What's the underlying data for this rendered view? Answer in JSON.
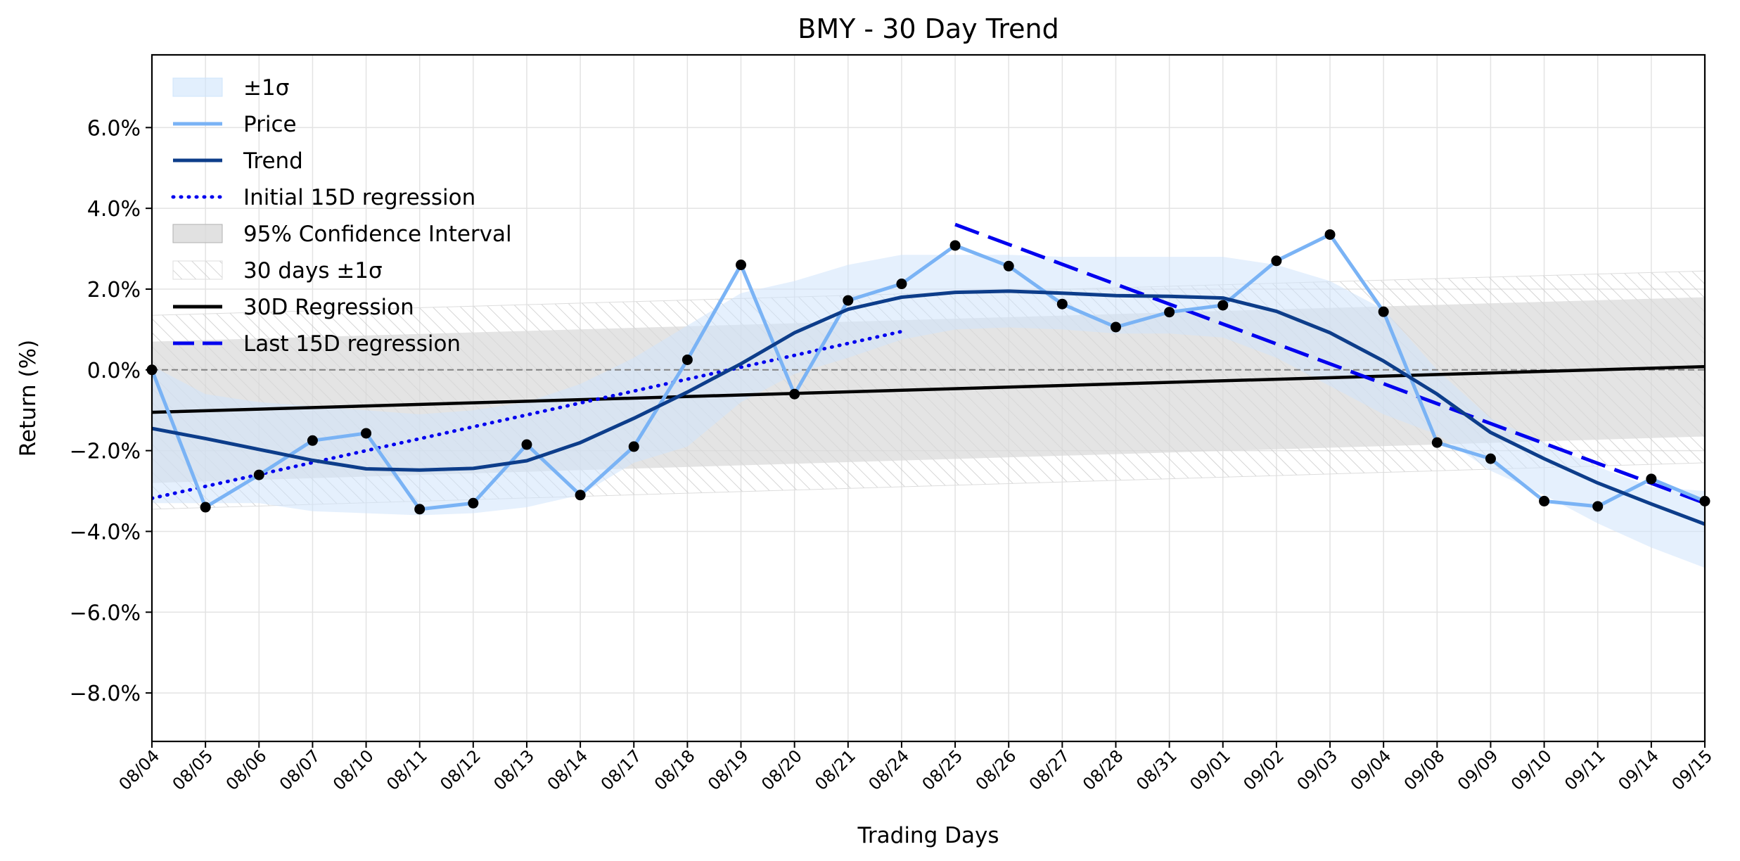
{
  "chart_data": {
    "type": "line",
    "title": "BMY - 30 Day Trend",
    "xlabel": "Trading Days",
    "ylabel": "Return (%)",
    "ylim": [
      -9.2,
      7.8
    ],
    "yticks": [
      {
        "value": 6,
        "label": "6.0%"
      },
      {
        "value": 4,
        "label": "4.0%"
      },
      {
        "value": 2,
        "label": "2.0%"
      },
      {
        "value": 0,
        "label": "0.0%"
      },
      {
        "value": -2,
        "label": "−2.0%"
      },
      {
        "value": -4,
        "label": "−4.0%"
      },
      {
        "value": -6,
        "label": "−6.0%"
      },
      {
        "value": -8,
        "label": "−8.0%"
      }
    ],
    "grid": true,
    "legend_position": "top-left",
    "categories": [
      "08/04",
      "08/05",
      "08/06",
      "08/07",
      "08/10",
      "08/11",
      "08/12",
      "08/13",
      "08/14",
      "08/17",
      "08/18",
      "08/19",
      "08/20",
      "08/21",
      "08/24",
      "08/25",
      "08/26",
      "08/27",
      "08/28",
      "08/31",
      "09/01",
      "09/02",
      "09/03",
      "09/04",
      "09/08",
      "09/09",
      "09/10",
      "09/11",
      "09/14",
      "09/15"
    ],
    "series": [
      {
        "name": "Price",
        "color": "#7ab3f5",
        "values": [
          0.0,
          -3.4,
          -2.6,
          -1.75,
          -1.57,
          -3.45,
          -3.3,
          -1.85,
          -3.1,
          -1.9,
          0.25,
          2.6,
          -0.6,
          1.72,
          2.13,
          3.08,
          2.57,
          1.63,
          1.06,
          1.43,
          1.6,
          2.7,
          3.35,
          1.44,
          -1.8,
          -2.2,
          -3.25,
          -3.38,
          -2.7,
          -3.25
        ]
      },
      {
        "name": "Trend",
        "color": "#0d3d8a",
        "values": [
          -1.45,
          -1.7,
          -1.97,
          -2.24,
          -2.45,
          -2.48,
          -2.44,
          -2.25,
          -1.8,
          -1.2,
          -0.55,
          0.15,
          0.92,
          1.5,
          1.8,
          1.92,
          1.95,
          1.9,
          1.84,
          1.82,
          1.78,
          1.45,
          0.92,
          0.22,
          -0.6,
          -1.55,
          -2.2,
          -2.8,
          -3.32,
          -3.82
        ]
      },
      {
        "name": "Initial 15D regression",
        "color": "#0000ee",
        "style": "dotted",
        "x_range": [
          0,
          14
        ],
        "y_range": [
          -3.18,
          0.95
        ]
      },
      {
        "name": "Last 15D regression",
        "color": "#0000ee",
        "style": "dashed",
        "x_range": [
          15,
          29
        ],
        "y_range": [
          3.6,
          -3.3
        ]
      },
      {
        "name": "30D Regression",
        "color": "#000000",
        "style": "solid",
        "x_range": [
          0,
          29
        ],
        "y_range": [
          -1.05,
          0.08
        ]
      }
    ],
    "bands": [
      {
        "name": "±1σ",
        "color": "#ddeeff",
        "upper": [
          0.1,
          -0.6,
          -0.8,
          -0.9,
          -1.0,
          -1.1,
          -1.0,
          -0.8,
          -0.35,
          0.3,
          1.1,
          1.9,
          2.2,
          2.6,
          2.85,
          2.85,
          2.85,
          2.8,
          2.8,
          2.8,
          2.8,
          2.6,
          2.2,
          1.5,
          0.0,
          -1.2,
          -1.8,
          -2.4,
          -2.9,
          -3.0
        ],
        "lower": [
          -3.3,
          -3.3,
          -3.3,
          -3.5,
          -3.55,
          -3.6,
          -3.55,
          -3.4,
          -3.1,
          -2.3,
          -1.9,
          -0.8,
          -0.1,
          0.3,
          0.75,
          1.0,
          1.05,
          1.0,
          0.9,
          0.9,
          0.8,
          0.3,
          -0.4,
          -1.1,
          -1.6,
          -2.5,
          -3.1,
          -3.8,
          -4.4,
          -4.9
        ]
      },
      {
        "name": "95% Confidence Interval",
        "color": "#d9d9d9",
        "x": [
          0,
          29
        ],
        "upper": [
          0.7,
          1.8
        ],
        "lower": [
          -2.8,
          -1.65
        ]
      },
      {
        "name": "30 days ±1σ",
        "color": "#bbbbbb",
        "style": "hatched",
        "x": [
          0,
          29
        ],
        "upper": [
          1.35,
          2.45
        ],
        "lower": [
          -3.45,
          -2.3
        ]
      }
    ],
    "reference_line": {
      "value": 0,
      "color": "#808080",
      "style": "dashed"
    },
    "legend": [
      "±1σ",
      "Price",
      "Trend",
      "Initial 15D regression",
      "95% Confidence Interval",
      "30 days ±1σ",
      "30D Regression",
      "Last 15D regression"
    ]
  }
}
